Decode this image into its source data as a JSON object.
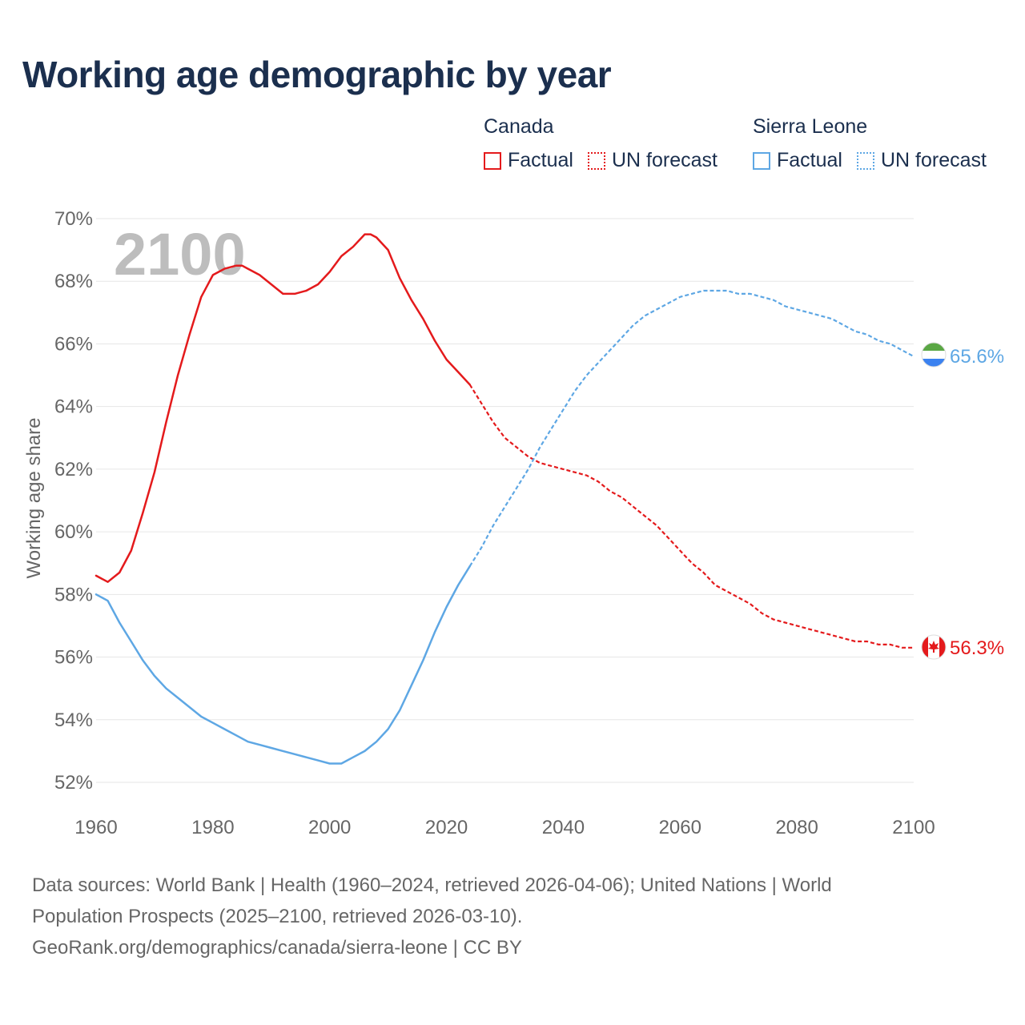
{
  "title": "Working age demographic by year",
  "legend": {
    "groups": [
      {
        "name": "Canada",
        "color": "#e41a1c",
        "factual_label": "Factual",
        "forecast_label": "UN forecast"
      },
      {
        "name": "Sierra Leone",
        "color": "#5ea7e4",
        "factual_label": "Factual",
        "forecast_label": "UN forecast"
      }
    ]
  },
  "year_watermark": "2100",
  "source": {
    "line1": "Data sources: World Bank | Health (1960–2024, retrieved 2026-04-06); United Nations | World",
    "line2": "Population Prospects (2025–2100, retrieved 2026-03-10).",
    "line3": "GeoRank.org/demographics/canada/sierra-leone | CC BY"
  },
  "chart_data": {
    "type": "line",
    "title": "Working age demographic by year",
    "xlabel": "",
    "ylabel": "Working age share",
    "xlim": [
      1960,
      2100
    ],
    "ylim": [
      52,
      70
    ],
    "x_ticks": [
      1960,
      1980,
      2000,
      2020,
      2040,
      2060,
      2080,
      2100
    ],
    "x_tick_labels": [
      "1960",
      "1980",
      "2000",
      "2020",
      "2040",
      "2060",
      "2080",
      "2100"
    ],
    "y_ticks": [
      52,
      54,
      56,
      58,
      60,
      62,
      64,
      66,
      68,
      70
    ],
    "y_tick_labels": [
      "52%",
      "54%",
      "56%",
      "58%",
      "60%",
      "62%",
      "64%",
      "66%",
      "68%",
      "70%"
    ],
    "grid": true,
    "legend_position": "top-right",
    "series": [
      {
        "name": "Canada",
        "color": "#e41a1c",
        "end_label": "56.3%",
        "factual": {
          "x": [
            1960,
            1962,
            1964,
            1966,
            1968,
            1970,
            1972,
            1974,
            1976,
            1978,
            1980,
            1982,
            1984,
            1985,
            1986,
            1988,
            1990,
            1992,
            1994,
            1996,
            1998,
            2000,
            2002,
            2004,
            2006,
            2007,
            2008,
            2010,
            2012,
            2014,
            2016,
            2018,
            2020,
            2022,
            2024
          ],
          "y": [
            58.6,
            58.4,
            58.7,
            59.4,
            60.6,
            61.9,
            63.5,
            65.0,
            66.3,
            67.5,
            68.2,
            68.4,
            68.5,
            68.5,
            68.4,
            68.2,
            67.9,
            67.6,
            67.6,
            67.7,
            67.9,
            68.3,
            68.8,
            69.1,
            69.5,
            69.5,
            69.4,
            69.0,
            68.1,
            67.4,
            66.8,
            66.1,
            65.5,
            65.1,
            64.7
          ]
        },
        "forecast": {
          "x": [
            2024,
            2026,
            2028,
            2030,
            2032,
            2034,
            2036,
            2038,
            2040,
            2042,
            2044,
            2046,
            2048,
            2050,
            2052,
            2054,
            2056,
            2058,
            2060,
            2062,
            2064,
            2066,
            2068,
            2070,
            2072,
            2074,
            2076,
            2078,
            2080,
            2082,
            2084,
            2086,
            2088,
            2090,
            2092,
            2094,
            2096,
            2098,
            2100
          ],
          "y": [
            64.7,
            64.1,
            63.5,
            63.0,
            62.7,
            62.4,
            62.2,
            62.1,
            62.0,
            61.9,
            61.8,
            61.6,
            61.3,
            61.1,
            60.8,
            60.5,
            60.2,
            59.8,
            59.4,
            59.0,
            58.7,
            58.3,
            58.1,
            57.9,
            57.7,
            57.4,
            57.2,
            57.1,
            57.0,
            56.9,
            56.8,
            56.7,
            56.6,
            56.5,
            56.5,
            56.4,
            56.4,
            56.3,
            56.3
          ]
        }
      },
      {
        "name": "Sierra Leone",
        "color": "#5ea7e4",
        "end_label": "65.6%",
        "factual": {
          "x": [
            1960,
            1962,
            1964,
            1966,
            1968,
            1970,
            1972,
            1974,
            1976,
            1978,
            1980,
            1982,
            1984,
            1986,
            1988,
            1990,
            1992,
            1994,
            1996,
            1998,
            2000,
            2002,
            2004,
            2006,
            2008,
            2010,
            2012,
            2014,
            2016,
            2018,
            2020,
            2022,
            2024
          ],
          "y": [
            58.0,
            57.8,
            57.1,
            56.5,
            55.9,
            55.4,
            55.0,
            54.7,
            54.4,
            54.1,
            53.9,
            53.7,
            53.5,
            53.3,
            53.2,
            53.1,
            53.0,
            52.9,
            52.8,
            52.7,
            52.6,
            52.6,
            52.8,
            53.0,
            53.3,
            53.7,
            54.3,
            55.1,
            55.9,
            56.8,
            57.6,
            58.3,
            58.9
          ]
        },
        "forecast": {
          "x": [
            2024,
            2026,
            2028,
            2030,
            2032,
            2034,
            2036,
            2038,
            2040,
            2042,
            2044,
            2046,
            2048,
            2050,
            2052,
            2054,
            2056,
            2058,
            2060,
            2062,
            2064,
            2066,
            2068,
            2070,
            2072,
            2074,
            2076,
            2078,
            2080,
            2082,
            2084,
            2086,
            2088,
            2090,
            2092,
            2094,
            2096,
            2098,
            2100
          ],
          "y": [
            58.9,
            59.5,
            60.2,
            60.8,
            61.4,
            62.0,
            62.7,
            63.3,
            63.9,
            64.5,
            65.0,
            65.4,
            65.8,
            66.2,
            66.6,
            66.9,
            67.1,
            67.3,
            67.5,
            67.6,
            67.7,
            67.7,
            67.7,
            67.6,
            67.6,
            67.5,
            67.4,
            67.2,
            67.1,
            67.0,
            66.9,
            66.8,
            66.6,
            66.4,
            66.3,
            66.1,
            66.0,
            65.8,
            65.6
          ]
        }
      }
    ]
  }
}
